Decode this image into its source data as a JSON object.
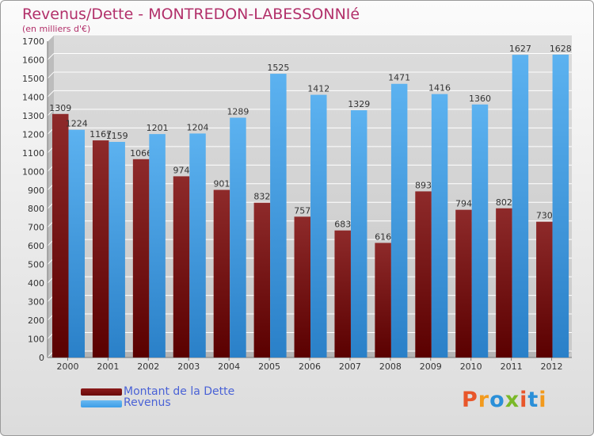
{
  "header": {
    "title": "Revenus/Dette - MONTREDON-LABESSONNIé",
    "subtitle": "(en milliers d'€)"
  },
  "legend": {
    "items": [
      {
        "label": "Montant de la Dette",
        "color": "#6b0a0a"
      },
      {
        "label": "Revenus",
        "color": "#3d9ee8"
      }
    ]
  },
  "logo": {
    "text": "Proxiti",
    "colors": [
      "#e8562a",
      "#f29a1d",
      "#2a8fd8",
      "#7ab828",
      "#e8562a",
      "#2a8fd8",
      "#f29a1d"
    ]
  },
  "chart_data": {
    "type": "bar",
    "title": "Revenus/Dette - MONTREDON-LABESSONNIé",
    "subtitle": "(en milliers d'€)",
    "xlabel": "",
    "ylabel": "",
    "ylim": [
      0,
      1700
    ],
    "ytick_step": 100,
    "grid": true,
    "legend_position": "bottom-left",
    "categories": [
      "2000",
      "2001",
      "2002",
      "2003",
      "2004",
      "2005",
      "2006",
      "2007",
      "2008",
      "2009",
      "2010",
      "2011",
      "2012"
    ],
    "series": [
      {
        "name": "Montant de la Dette",
        "color": "#6b0a0a",
        "values": [
          1309,
          1167,
          1066,
          974,
          901,
          832,
          757,
          683,
          616,
          893,
          794,
          802,
          730
        ]
      },
      {
        "name": "Revenus",
        "color": "#3d9ee8",
        "values": [
          1224,
          1159,
          1201,
          1204,
          1289,
          1525,
          1412,
          1329,
          1471,
          1416,
          1360,
          1627,
          1628
        ]
      }
    ]
  }
}
